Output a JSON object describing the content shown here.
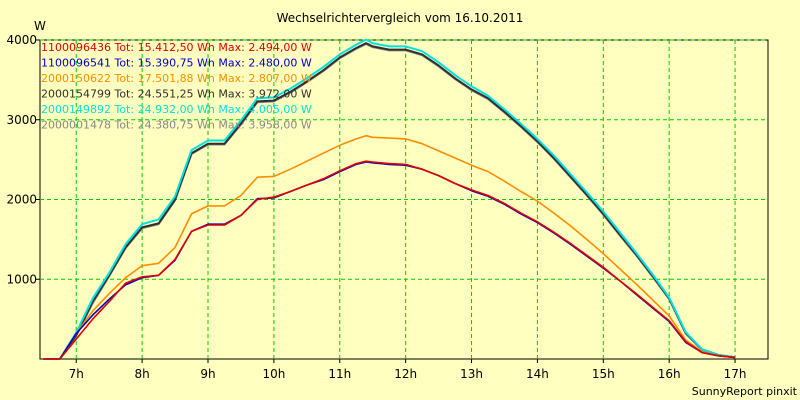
{
  "chart_data": {
    "type": "line",
    "title": "Wechselrichtervergleich vom 16.10.2011",
    "ylabel": "W",
    "xlabel": "",
    "footer": "SunnyReport pinxit",
    "xlim": [
      6.45,
      17.5
    ],
    "ylim": [
      0,
      4000
    ],
    "grid": true,
    "legend_position": "top-left",
    "x_ticks": [
      {
        "value": 7,
        "label": "7h"
      },
      {
        "value": 8,
        "label": "8h"
      },
      {
        "value": 9,
        "label": "9h"
      },
      {
        "value": 10,
        "label": "10h"
      },
      {
        "value": 11,
        "label": "11h"
      },
      {
        "value": 12,
        "label": "12h"
      },
      {
        "value": 13,
        "label": "13h"
      },
      {
        "value": 14,
        "label": "14h"
      },
      {
        "value": 15,
        "label": "15h"
      },
      {
        "value": 16,
        "label": "16h"
      },
      {
        "value": 17,
        "label": "17h"
      }
    ],
    "y_ticks": [
      {
        "value": 1000,
        "label": "1000"
      },
      {
        "value": 2000,
        "label": "2000"
      },
      {
        "value": 3000,
        "label": "3000"
      },
      {
        "value": 4000,
        "label": "4000"
      }
    ],
    "x": [
      6.5,
      6.75,
      7.0,
      7.25,
      7.5,
      7.75,
      8.0,
      8.25,
      8.5,
      8.75,
      9.0,
      9.25,
      9.5,
      9.75,
      10.0,
      10.25,
      10.5,
      10.75,
      11.0,
      11.25,
      11.4,
      11.5,
      11.75,
      12.0,
      12.25,
      12.5,
      12.75,
      13.0,
      13.25,
      13.5,
      13.75,
      14.0,
      14.25,
      14.5,
      14.75,
      15.0,
      15.25,
      15.5,
      15.75,
      16.0,
      16.25,
      16.5,
      16.75,
      17.0
    ],
    "series": [
      {
        "name": "1100096436",
        "legend": "1100096436 Tot: 15.412,50 Wh Max: 2.494,00 W",
        "color": "#e00000",
        "values": [
          0,
          0,
          250,
          500,
          720,
          950,
          1030,
          1050,
          1250,
          1600,
          1680,
          1680,
          1800,
          2000,
          2030,
          2100,
          2180,
          2260,
          2360,
          2450,
          2480,
          2470,
          2450,
          2440,
          2380,
          2300,
          2200,
          2120,
          2050,
          1950,
          1830,
          1720,
          1590,
          1450,
          1300,
          1150,
          980,
          820,
          650,
          480,
          220,
          80,
          40,
          20
        ]
      },
      {
        "name": "1100096541",
        "legend": "1100096541 Tot: 15.390,75 Wh Max: 2.480,00 W",
        "color": "#0000c8",
        "values": [
          0,
          0,
          320,
          550,
          750,
          930,
          1020,
          1050,
          1240,
          1600,
          1690,
          1690,
          1800,
          2010,
          2020,
          2100,
          2180,
          2250,
          2350,
          2440,
          2470,
          2460,
          2440,
          2430,
          2380,
          2300,
          2200,
          2110,
          2040,
          1940,
          1820,
          1710,
          1580,
          1440,
          1290,
          1140,
          980,
          810,
          640,
          470,
          210,
          80,
          40,
          20
        ]
      },
      {
        "name": "2000150622",
        "legend": "2000150622 Tot: 17.501,88 Wh Max: 2.807,00 W",
        "color": "#ff8c00",
        "values": [
          0,
          0,
          320,
          600,
          820,
          1020,
          1170,
          1200,
          1400,
          1820,
          1920,
          1920,
          2050,
          2280,
          2290,
          2380,
          2480,
          2580,
          2680,
          2760,
          2800,
          2780,
          2770,
          2760,
          2700,
          2610,
          2520,
          2430,
          2350,
          2230,
          2100,
          1980,
          1830,
          1670,
          1500,
          1320,
          1130,
          940,
          740,
          540,
          240,
          90,
          40,
          20
        ]
      },
      {
        "name": "2000154799",
        "legend": "2000154799 Tot: 24.551,25 Wh Max: 3.972,00 W",
        "color": "#303030",
        "values": [
          0,
          0,
          300,
          720,
          1050,
          1400,
          1650,
          1700,
          2000,
          2580,
          2700,
          2700,
          2950,
          3230,
          3240,
          3350,
          3480,
          3620,
          3780,
          3900,
          3960,
          3920,
          3880,
          3880,
          3820,
          3680,
          3520,
          3380,
          3270,
          3100,
          2920,
          2730,
          2520,
          2290,
          2060,
          1820,
          1560,
          1310,
          1040,
          760,
          330,
          120,
          50,
          20
        ]
      },
      {
        "name": "2000149892",
        "legend": "2000149892 Tot: 24.932,00 Wh Max: 4.005,00 W",
        "color": "#00e0e0",
        "values": [
          0,
          0,
          330,
          760,
          1080,
          1440,
          1690,
          1750,
          2040,
          2620,
          2740,
          2740,
          2990,
          3270,
          3280,
          3390,
          3520,
          3660,
          3820,
          3940,
          4005,
          3960,
          3920,
          3920,
          3860,
          3720,
          3560,
          3420,
          3300,
          3130,
          2950,
          2760,
          2550,
          2320,
          2090,
          1850,
          1590,
          1330,
          1060,
          770,
          340,
          120,
          50,
          20
        ]
      },
      {
        "name": "2000001478",
        "legend": "2000001478 Tot: 24.380,75 Wh Max: 3.958,00 W",
        "color": "#888888",
        "values": [
          0,
          0,
          290,
          700,
          1040,
          1390,
          1640,
          1690,
          1990,
          2570,
          2690,
          2690,
          2940,
          3220,
          3230,
          3340,
          3470,
          3610,
          3770,
          3890,
          3950,
          3910,
          3870,
          3870,
          3810,
          3670,
          3510,
          3370,
          3260,
          3090,
          2910,
          2720,
          2510,
          2280,
          2050,
          1810,
          1550,
          1300,
          1030,
          750,
          320,
          110,
          50,
          20
        ]
      }
    ]
  }
}
